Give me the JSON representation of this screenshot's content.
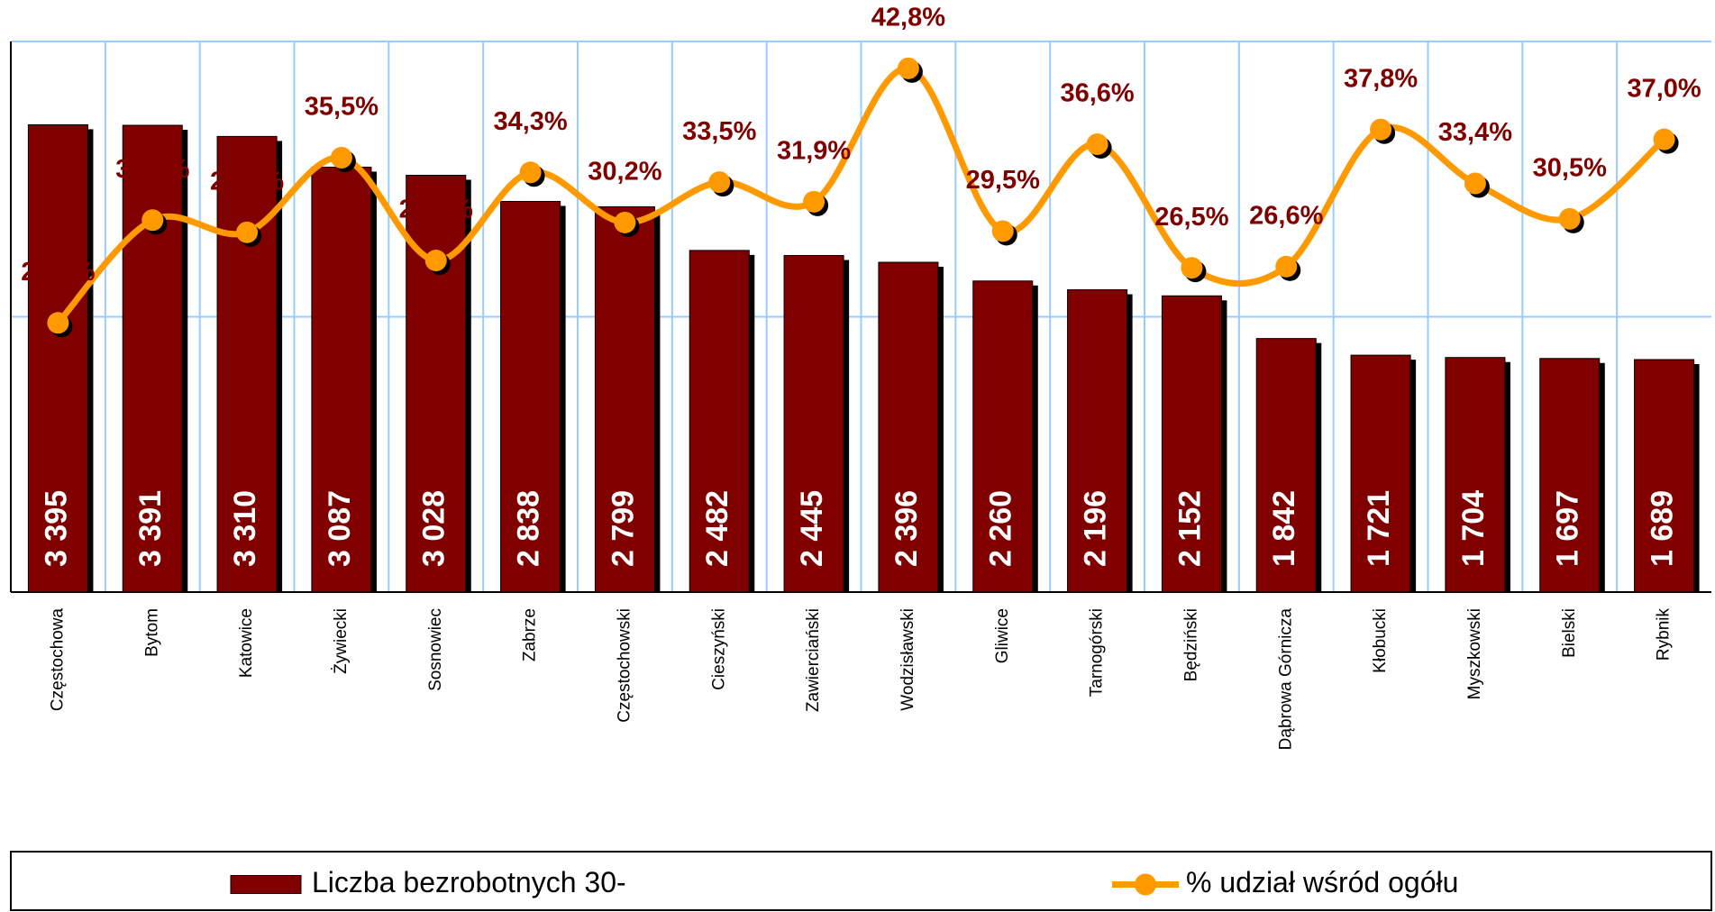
{
  "chart_data": {
    "type": "bar_line",
    "categories": [
      "Częstochowa",
      "Bytom",
      "Katowice",
      "Żywiecki",
      "Sosnowiec",
      "Zabrze",
      "Częstochowski",
      "Cieszyński",
      "Zawierciański",
      "Wodzisławski",
      "Gliwice",
      "Tarnogórski",
      "Będziński",
      "Dąbrowa Górnicza",
      "Kłobucki",
      "Myszkowski",
      "Bielski",
      "Rybnik"
    ],
    "series": [
      {
        "name": "Liczba bezrobotnych 30-",
        "color": "#800000",
        "values": [
          3395,
          3391,
          3310,
          3087,
          3028,
          2838,
          2799,
          2482,
          2445,
          2396,
          2260,
          2196,
          2152,
          1842,
          1721,
          1704,
          1697,
          1689
        ],
        "value_labels": [
          "3 395",
          "3 391",
          "3 310",
          "3 087",
          "3 028",
          "2 838",
          "2 799",
          "2 482",
          "2 445",
          "2 396",
          "2 260",
          "2 196",
          "2 152",
          "1 842",
          "1 721",
          "1 704",
          "1 697",
          "1 689"
        ]
      },
      {
        "name": "% udział wśród ogółu",
        "color": "#ff9900",
        "axis": "y2",
        "values": [
          22.0,
          30.4,
          29.4,
          35.5,
          27.1,
          34.3,
          30.2,
          33.5,
          31.9,
          42.8,
          29.5,
          36.6,
          26.5,
          26.6,
          37.8,
          33.4,
          30.5,
          37.0
        ],
        "value_labels": [
          "22,0%",
          "30,4%",
          "29,4%",
          "35,5%",
          "27,1%",
          "34,3%",
          "30,2%",
          "33,5%",
          "31,9%",
          "42,8%",
          "29,5%",
          "36,6%",
          "26,5%",
          "26,6%",
          "37,8%",
          "33,4%",
          "30,5%",
          "37,0%"
        ]
      }
    ],
    "ylim": [
      0,
      4000
    ],
    "yticks": [
      0,
      2000,
      4000
    ],
    "y2lim": [
      0,
      45
    ],
    "grid": true,
    "legend": "bottom"
  }
}
